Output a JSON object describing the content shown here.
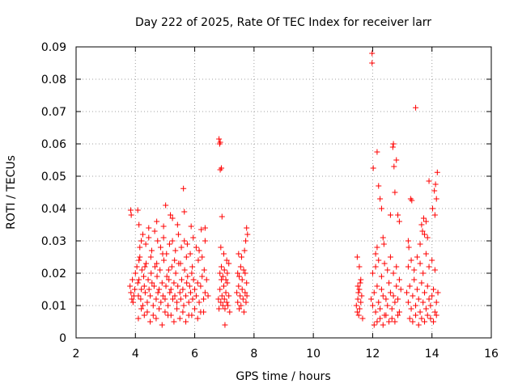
{
  "chart_data": {
    "type": "scatter",
    "title": "Day 222 of 2025, Rate Of TEC Index for receiver larr",
    "xlabel": "GPS time / hours",
    "ylabel": "ROTI / TECUs",
    "xlim": [
      2,
      16
    ],
    "ylim": [
      0,
      0.09
    ],
    "x_ticks": [
      2,
      4,
      6,
      8,
      10,
      12,
      14,
      16
    ],
    "y_ticks": [
      0,
      0.01,
      0.02,
      0.03,
      0.04,
      0.05,
      0.06,
      0.07,
      0.08,
      0.09
    ],
    "x_tick_labels": [
      "2",
      "4",
      "6",
      "8",
      "10",
      "12",
      "14",
      "16"
    ],
    "y_tick_labels": [
      "0",
      "0.01",
      "0.02",
      "0.03",
      "0.04",
      "0.05",
      "0.06",
      "0.07",
      "0.08",
      "0.09"
    ],
    "grid": true,
    "marker": "+",
    "marker_color": "#ff0000",
    "series": [
      {
        "x": [
          3.82,
          3.85,
          3.88,
          3.9,
          3.92,
          3.95,
          3.98,
          4.0,
          4.05,
          4.08,
          4.1,
          4.12,
          4.15,
          4.18,
          4.2,
          4.22,
          4.25,
          4.28,
          4.3,
          4.33,
          4.36,
          4.4,
          4.43,
          4.46,
          4.5,
          4.53,
          4.56,
          4.6,
          4.63,
          4.66,
          4.7,
          4.73,
          4.76,
          4.8,
          4.83,
          4.86,
          4.9,
          4.93,
          4.96,
          5.0,
          5.03,
          5.06,
          5.1,
          5.13,
          5.16,
          5.2,
          5.23,
          5.26,
          5.3,
          5.33,
          5.36,
          5.4,
          5.43,
          5.46,
          5.5,
          5.53,
          5.56,
          5.6,
          5.63,
          5.66,
          5.7,
          5.73,
          5.76,
          5.8,
          5.83,
          5.86,
          5.9,
          5.93,
          5.96,
          6.0,
          6.05,
          6.1,
          6.15,
          6.2,
          6.25,
          6.3,
          6.35,
          6.4,
          6.45,
          4.15,
          4.2,
          4.25,
          4.35,
          4.45,
          4.55,
          4.65,
          4.75,
          4.85,
          4.95,
          5.05,
          5.15,
          5.25,
          5.35,
          5.45,
          5.55,
          5.65,
          5.75,
          5.85,
          5.95,
          6.05,
          6.15,
          6.25,
          6.35,
          4.1,
          4.3,
          4.5,
          4.7,
          4.9,
          5.1,
          5.3,
          5.5,
          5.7,
          5.9,
          6.1,
          6.3,
          4.2,
          4.4,
          4.6,
          4.8,
          5.0,
          5.2,
          5.4,
          5.6,
          5.8,
          6.0,
          6.2,
          4.12,
          4.32,
          4.52,
          4.72,
          4.92,
          5.12,
          5.32,
          5.52,
          5.72,
          5.92,
          6.12,
          6.32,
          3.84,
          3.86,
          4.08,
          4.12,
          4.45,
          4.72,
          4.95,
          5.02,
          5.18,
          5.25,
          5.42,
          5.62,
          5.88,
          5.65,
          6.22,
          6.35,
          6.8,
          6.82,
          6.85,
          6.88,
          6.9,
          6.92,
          6.95,
          6.98,
          7.0,
          7.02,
          7.05,
          7.08,
          7.1,
          7.12,
          7.15,
          7.18,
          6.85,
          6.9,
          6.95,
          7.0,
          7.05,
          7.1,
          7.15,
          6.88,
          6.98,
          7.08,
          6.82,
          6.84,
          6.86,
          6.86,
          6.9,
          6.92,
          7.02,
          7.42,
          7.45,
          7.48,
          7.5,
          7.53,
          7.56,
          7.6,
          7.63,
          7.66,
          7.7,
          7.73,
          7.76,
          7.45,
          7.5,
          7.55,
          7.6,
          7.65,
          7.7,
          7.75,
          7.48,
          7.58,
          7.68,
          7.72,
          7.75,
          7.78,
          11.45,
          11.48,
          11.5,
          11.53,
          11.56,
          11.6,
          11.63,
          11.66,
          11.5,
          11.55,
          11.6,
          11.52,
          11.58,
          11.48,
          11.55,
          11.95,
          12.0,
          12.05,
          12.1,
          12.15,
          12.2,
          12.25,
          12.3,
          12.35,
          12.4,
          12.45,
          12.5,
          12.55,
          12.6,
          12.65,
          12.7,
          12.75,
          12.8,
          12.85,
          12.9,
          12.95,
          12.0,
          12.1,
          12.2,
          12.3,
          12.4,
          12.5,
          12.6,
          12.7,
          12.8,
          12.9,
          12.05,
          12.15,
          12.25,
          12.35,
          12.45,
          12.55,
          12.65,
          12.75,
          12.85,
          11.98,
          11.98,
          12.02,
          12.15,
          12.2,
          12.25,
          12.3,
          12.6,
          12.68,
          12.7,
          12.72,
          12.8,
          12.85,
          12.9,
          12.35,
          12.38,
          12.75,
          12.1,
          12.15,
          13.15,
          13.2,
          13.25,
          13.3,
          13.35,
          13.4,
          13.45,
          13.5,
          13.55,
          13.6,
          13.65,
          13.7,
          13.75,
          13.8,
          13.85,
          13.9,
          13.95,
          14.0,
          14.05,
          14.1,
          14.15,
          14.2,
          13.2,
          13.3,
          13.4,
          13.5,
          13.6,
          13.7,
          13.8,
          13.9,
          14.0,
          14.1,
          13.25,
          13.35,
          13.45,
          13.55,
          13.65,
          13.75,
          13.85,
          13.95,
          14.05,
          14.15,
          13.22,
          13.28,
          13.32,
          13.45,
          13.65,
          13.68,
          13.72,
          13.75,
          13.9,
          14.02,
          14.08,
          14.12,
          14.15,
          14.18,
          13.2,
          14.1,
          13.85,
          13.6,
          13.8
        ],
        "y": [
          0.016,
          0.014,
          0.012,
          0.018,
          0.011,
          0.013,
          0.015,
          0.02,
          0.022,
          0.017,
          0.013,
          0.018,
          0.025,
          0.012,
          0.015,
          0.021,
          0.01,
          0.019,
          0.016,
          0.014,
          0.023,
          0.011,
          0.018,
          0.015,
          0.013,
          0.02,
          0.017,
          0.01,
          0.016,
          0.022,
          0.012,
          0.019,
          0.014,
          0.015,
          0.021,
          0.011,
          0.017,
          0.013,
          0.024,
          0.012,
          0.016,
          0.019,
          0.01,
          0.018,
          0.014,
          0.015,
          0.022,
          0.012,
          0.017,
          0.013,
          0.02,
          0.011,
          0.016,
          0.023,
          0.014,
          0.012,
          0.018,
          0.015,
          0.01,
          0.021,
          0.013,
          0.017,
          0.019,
          0.011,
          0.016,
          0.014,
          0.02,
          0.012,
          0.018,
          0.015,
          0.013,
          0.017,
          0.011,
          0.016,
          0.019,
          0.012,
          0.014,
          0.018,
          0.013,
          0.028,
          0.03,
          0.032,
          0.029,
          0.031,
          0.027,
          0.033,
          0.03,
          0.028,
          0.031,
          0.026,
          0.029,
          0.03,
          0.027,
          0.032,
          0.028,
          0.03,
          0.029,
          0.026,
          0.031,
          0.028,
          0.027,
          0.025,
          0.03,
          0.006,
          0.007,
          0.005,
          0.006,
          0.004,
          0.007,
          0.005,
          0.006,
          0.005,
          0.007,
          0.006,
          0.008,
          0.009,
          0.008,
          0.007,
          0.009,
          0.008,
          0.007,
          0.009,
          0.008,
          0.007,
          0.009,
          0.008,
          0.024,
          0.022,
          0.025,
          0.023,
          0.026,
          0.021,
          0.024,
          0.023,
          0.025,
          0.022,
          0.024,
          0.021,
          0.0395,
          0.038,
          0.0395,
          0.035,
          0.034,
          0.036,
          0.0345,
          0.041,
          0.038,
          0.037,
          0.035,
          0.0462,
          0.0345,
          0.039,
          0.0335,
          0.034,
          0.012,
          0.009,
          0.015,
          0.011,
          0.018,
          0.013,
          0.01,
          0.016,
          0.012,
          0.009,
          0.014,
          0.011,
          0.017,
          0.01,
          0.013,
          0.008,
          0.02,
          0.022,
          0.019,
          0.021,
          0.018,
          0.02,
          0.023,
          0.028,
          0.026,
          0.024,
          0.0615,
          0.06,
          0.0605,
          0.052,
          0.0525,
          0.0375,
          0.004,
          0.014,
          0.011,
          0.016,
          0.009,
          0.013,
          0.01,
          0.015,
          0.012,
          0.008,
          0.014,
          0.011,
          0.013,
          0.02,
          0.019,
          0.022,
          0.018,
          0.021,
          0.02,
          0.017,
          0.026,
          0.025,
          0.027,
          0.03,
          0.034,
          0.032,
          0.01,
          0.008,
          0.012,
          0.007,
          0.009,
          0.011,
          0.013,
          0.006,
          0.016,
          0.015,
          0.018,
          0.014,
          0.017,
          0.025,
          0.022,
          0.012,
          0.01,
          0.014,
          0.008,
          0.016,
          0.011,
          0.009,
          0.015,
          0.013,
          0.007,
          0.012,
          0.01,
          0.017,
          0.014,
          0.009,
          0.013,
          0.011,
          0.016,
          0.012,
          0.008,
          0.015,
          0.02,
          0.022,
          0.024,
          0.019,
          0.023,
          0.021,
          0.025,
          0.02,
          0.022,
          0.018,
          0.004,
          0.005,
          0.006,
          0.004,
          0.007,
          0.005,
          0.006,
          0.005,
          0.007,
          0.088,
          0.085,
          0.0525,
          0.0575,
          0.047,
          0.043,
          0.04,
          0.038,
          0.059,
          0.06,
          0.053,
          0.055,
          0.038,
          0.036,
          0.031,
          0.029,
          0.045,
          0.026,
          0.028,
          0.014,
          0.011,
          0.016,
          0.009,
          0.013,
          0.018,
          0.01,
          0.015,
          0.012,
          0.008,
          0.017,
          0.011,
          0.014,
          0.009,
          0.016,
          0.012,
          0.01,
          0.013,
          0.015,
          0.008,
          0.011,
          0.014,
          0.022,
          0.024,
          0.021,
          0.025,
          0.023,
          0.02,
          0.026,
          0.022,
          0.024,
          0.021,
          0.006,
          0.005,
          0.007,
          0.004,
          0.006,
          0.005,
          0.007,
          0.006,
          0.005,
          0.007,
          0.028,
          0.043,
          0.0425,
          0.0712,
          0.035,
          0.033,
          0.037,
          0.032,
          0.0485,
          0.04,
          0.0455,
          0.0475,
          0.043,
          0.0512,
          0.03,
          0.038,
          0.031,
          0.029,
          0.036
        ]
      }
    ]
  }
}
